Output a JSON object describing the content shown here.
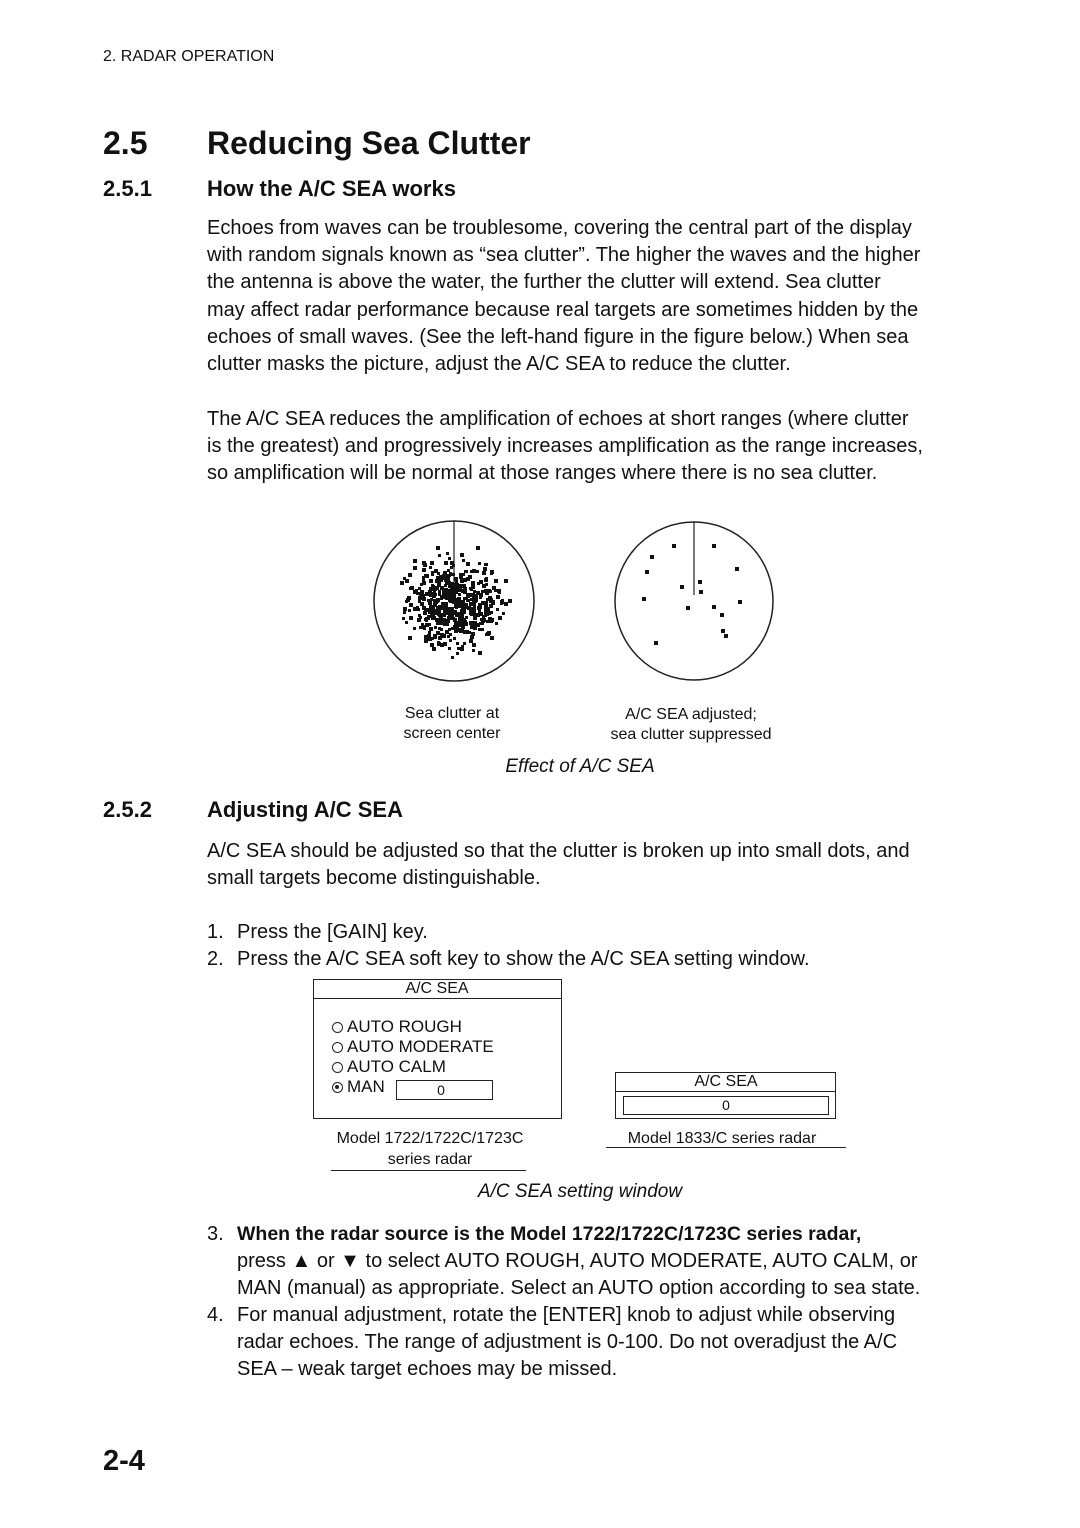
{
  "header": {
    "running_head": "2. RADAR OPERATION"
  },
  "section": {
    "number": "2.5",
    "title": "Reducing Sea Clutter"
  },
  "subsections": [
    {
      "number": "2.5.1",
      "title": "How the A/C SEA works",
      "paragraphs": [
        [
          "Echoes from waves can be troublesome, covering the central part of the display",
          "with random signals known as “sea clutter”. The higher the waves and the higher",
          "the antenna is above the water, the further the clutter will extend. Sea clutter",
          "may affect radar performance because real targets are sometimes hidden by the",
          "echoes of small waves. (See the left-hand figure in the figure below.) When sea",
          "clutter masks the picture, adjust the A/C SEA to reduce the clutter."
        ],
        [
          "The A/C SEA reduces the amplification of echoes at short ranges (where clutter",
          "is the greatest) and progressively increases amplification as the range increases,",
          "so amplification will be normal at those ranges where there is no sea clutter."
        ]
      ],
      "figure": {
        "panels": [
          {
            "caption": [
              "Sea clutter at",
              "screen center"
            ]
          },
          {
            "caption": [
              "A/C SEA adjusted;",
              "sea clutter suppressed"
            ]
          }
        ],
        "caption": "Effect of A/C SEA"
      }
    },
    {
      "number": "2.5.2",
      "title": "Adjusting A/C SEA",
      "paragraphs": [
        [
          "A/C SEA should be adjusted so that the clutter is broken up into small dots, and",
          "small targets become distinguishable."
        ]
      ],
      "steps": [
        {
          "number": "1.",
          "lines": [
            "Press the [GAIN] key."
          ]
        },
        {
          "number": "2.",
          "lines": [
            "Press the A/C SEA soft key to show the A/C SEA setting window."
          ]
        },
        {
          "number": "3.",
          "lines": [
            "When the radar source is the Model 1722/1722C/1723C series radar,",
            "press ▲ or ▼ to select AUTO ROUGH, AUTO MODERATE, AUTO CALM, or",
            "MAN (manual) as appropriate. Select an AUTO option according to sea state."
          ]
        },
        {
          "number": "4.",
          "lines": [
            "For manual adjustment, rotate the [ENTER] knob to adjust while observing",
            "radar echoes. The range of adjustment is 0-100. Do not overadjust the A/C",
            "SEA – weak target echoes may be missed."
          ]
        }
      ],
      "figure": {
        "windows": [
          {
            "title": "A/C SEA",
            "options": [
              "AUTO ROUGH",
              "AUTO MODERATE",
              "AUTO CALM",
              "MAN"
            ],
            "value": 0,
            "caption": [
              "Model 1722/1722C/1723C",
              "series radar"
            ]
          },
          {
            "title": "A/C SEA",
            "value": 0,
            "caption": [
              "Model 1833/C series radar"
            ]
          }
        ],
        "caption": "A/C SEA setting window"
      }
    }
  ],
  "footer": {
    "page": "2-4"
  }
}
